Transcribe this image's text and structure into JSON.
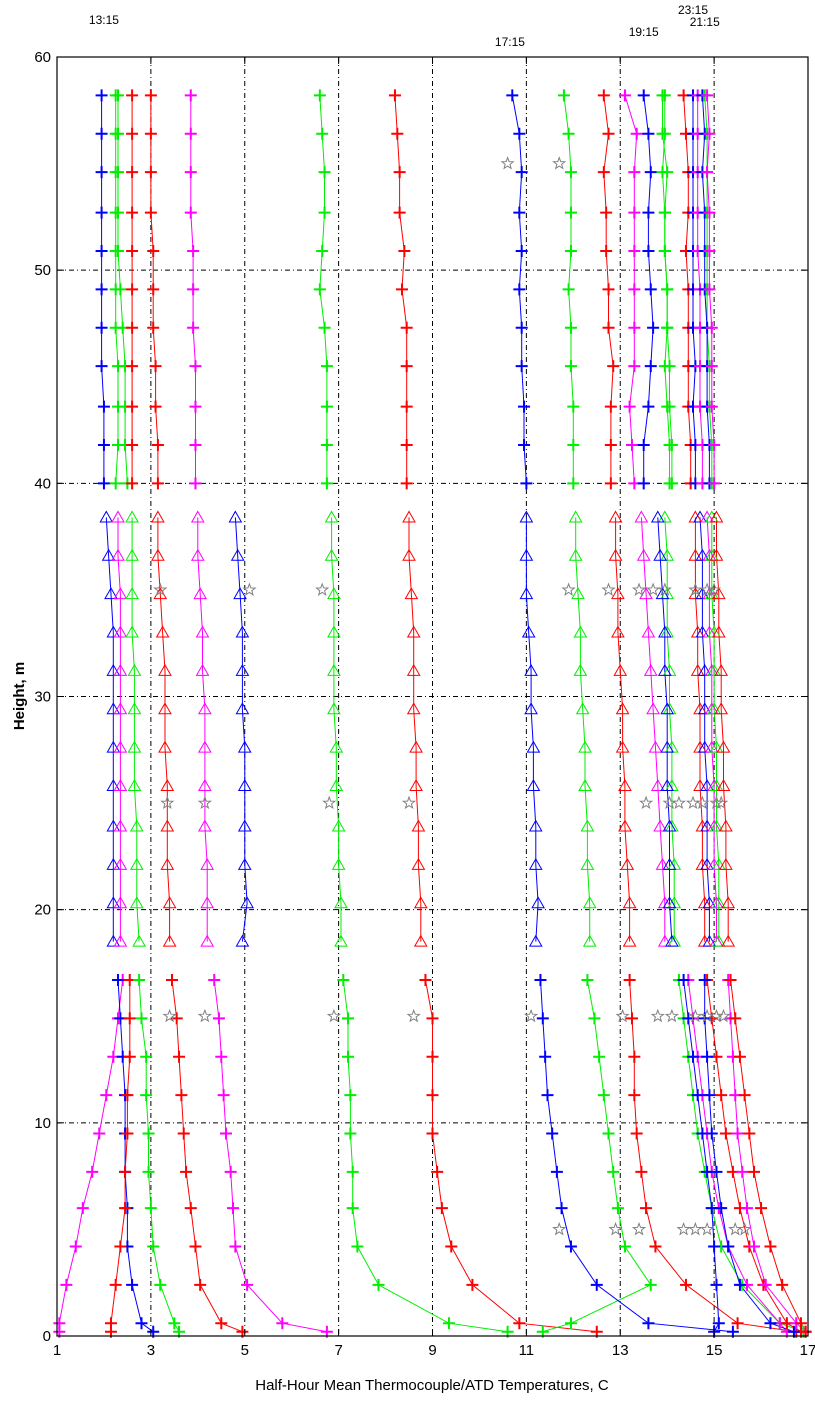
{
  "chart_data": {
    "type": "line",
    "title": "",
    "xlabel": "Half-Hour Mean Thermocouple/ATD Temperatures, C",
    "ylabel": "Height, m",
    "xlim": [
      1,
      17
    ],
    "ylim": [
      0,
      60
    ],
    "x_ticks": [
      1,
      3,
      5,
      7,
      9,
      11,
      13,
      15,
      17
    ],
    "y_ticks": [
      0,
      10,
      20,
      30,
      40,
      50,
      60
    ],
    "x_grid": [
      3,
      5,
      7,
      9,
      11,
      13,
      15
    ],
    "y_grid": [
      10,
      20,
      30,
      40,
      50
    ],
    "grid": true,
    "colors": {
      "blue": "#0000ff",
      "green": "#00ee00",
      "red": "#ff0000",
      "magenta": "#ff00ff",
      "star": "#808080"
    },
    "time_labels": [
      {
        "text": "13:15",
        "x": 2.0
      },
      {
        "text": "17:15",
        "x": 10.65
      },
      {
        "text": "19:15",
        "x": 13.5
      },
      {
        "text": "23:15",
        "x": 14.55
      },
      {
        "text": "21:15",
        "x": 14.8
      }
    ],
    "upper_heights": [
      40,
      41.8,
      43.6,
      45.5,
      47.3,
      49.1,
      50.9,
      52.7,
      54.6,
      56.4,
      58.2
    ],
    "atd_heights": [
      18.5,
      20.3,
      22.1,
      23.9,
      25.8,
      27.6,
      29.4,
      31.2,
      33.0,
      34.8,
      36.6,
      38.4
    ],
    "lower_heights": [
      0.2,
      0.6,
      2.4,
      4.2,
      6.0,
      7.7,
      9.5,
      11.3,
      13.1,
      14.9,
      16.7
    ],
    "upper_series": [
      {
        "color": "blue",
        "values": [
          2.0,
          2.0,
          2.0,
          1.95,
          1.95,
          1.95,
          1.95,
          1.95,
          1.95,
          1.95,
          1.95
        ]
      },
      {
        "color": "green",
        "values": [
          2.5,
          2.45,
          2.45,
          2.45,
          2.4,
          2.35,
          2.3,
          2.3,
          2.3,
          2.3,
          2.3
        ]
      },
      {
        "color": "red",
        "values": [
          2.6,
          2.6,
          2.6,
          2.6,
          2.6,
          2.6,
          2.6,
          2.6,
          2.6,
          2.6,
          2.6
        ]
      },
      {
        "color": "green",
        "values": [
          2.25,
          2.3,
          2.3,
          2.3,
          2.25,
          2.25,
          2.25,
          2.25,
          2.25,
          2.25,
          2.25
        ]
      },
      {
        "color": "red",
        "values": [
          3.15,
          3.15,
          3.1,
          3.1,
          3.05,
          3.05,
          3.05,
          3.0,
          3.0,
          3.0,
          3.0
        ]
      },
      {
        "color": "magenta",
        "values": [
          3.95,
          3.95,
          3.95,
          3.95,
          3.9,
          3.9,
          3.9,
          3.85,
          3.85,
          3.85,
          3.85
        ]
      },
      {
        "color": "green",
        "values": [
          6.75,
          6.75,
          6.75,
          6.75,
          6.7,
          6.6,
          6.65,
          6.7,
          6.7,
          6.65,
          6.6
        ]
      },
      {
        "color": "red",
        "values": [
          8.45,
          8.45,
          8.45,
          8.45,
          8.45,
          8.35,
          8.4,
          8.3,
          8.3,
          8.25,
          8.2
        ]
      },
      {
        "color": "blue",
        "values": [
          11.0,
          10.95,
          10.95,
          10.9,
          10.9,
          10.85,
          10.9,
          10.85,
          10.9,
          10.85,
          10.7
        ]
      },
      {
        "color": "green",
        "values": [
          12.0,
          12.0,
          12.0,
          11.95,
          11.95,
          11.9,
          11.95,
          11.95,
          11.95,
          11.9,
          11.8
        ]
      },
      {
        "color": "red",
        "values": [
          12.8,
          12.8,
          12.8,
          12.85,
          12.75,
          12.75,
          12.7,
          12.7,
          12.65,
          12.75,
          12.65
        ]
      },
      {
        "color": "magenta",
        "values": [
          13.3,
          13.25,
          13.2,
          13.3,
          13.3,
          13.3,
          13.3,
          13.3,
          13.3,
          13.35,
          13.1
        ]
      },
      {
        "color": "blue",
        "values": [
          13.5,
          13.5,
          13.6,
          13.65,
          13.7,
          13.65,
          13.6,
          13.6,
          13.65,
          13.6,
          13.5
        ]
      },
      {
        "color": "green",
        "values": [
          14.05,
          14.05,
          14.0,
          13.95,
          14.0,
          14.0,
          13.95,
          13.95,
          13.9,
          13.95,
          13.95
        ]
      },
      {
        "color": "green",
        "values": [
          14.1,
          14.1,
          14.05,
          14.05,
          14.0,
          14.0,
          13.95,
          13.95,
          14.0,
          13.9,
          13.9
        ]
      },
      {
        "color": "red",
        "values": [
          14.5,
          14.5,
          14.45,
          14.45,
          14.45,
          14.45,
          14.4,
          14.45,
          14.45,
          14.4,
          14.35
        ]
      },
      {
        "color": "blue",
        "values": [
          14.6,
          14.6,
          14.55,
          14.6,
          14.55,
          14.55,
          14.55,
          14.55,
          14.55,
          14.55,
          14.55
        ]
      },
      {
        "color": "magenta",
        "values": [
          14.75,
          14.75,
          14.7,
          14.7,
          14.7,
          14.7,
          14.65,
          14.65,
          14.65,
          14.65,
          14.65
        ]
      },
      {
        "color": "green",
        "values": [
          14.95,
          14.95,
          14.9,
          14.9,
          14.85,
          14.85,
          14.85,
          14.85,
          14.85,
          14.85,
          14.8
        ]
      },
      {
        "color": "blue",
        "values": [
          14.9,
          14.9,
          14.85,
          14.85,
          14.85,
          14.8,
          14.8,
          14.8,
          14.75,
          14.8,
          14.75
        ]
      },
      {
        "color": "magenta",
        "values": [
          15.0,
          15.0,
          14.95,
          14.95,
          14.95,
          14.9,
          14.9,
          14.9,
          14.85,
          14.9,
          14.85
        ]
      }
    ],
    "atd_series": [
      {
        "color": "blue",
        "values": [
          2.2,
          2.2,
          2.2,
          2.2,
          2.2,
          2.2,
          2.2,
          2.2,
          2.2,
          2.15,
          2.1,
          2.05
        ]
      },
      {
        "color": "magenta",
        "values": [
          2.35,
          2.35,
          2.35,
          2.35,
          2.35,
          2.35,
          2.35,
          2.35,
          2.35,
          2.35,
          2.3,
          2.3
        ]
      },
      {
        "color": "green",
        "values": [
          2.75,
          2.7,
          2.7,
          2.7,
          2.65,
          2.65,
          2.65,
          2.65,
          2.6,
          2.6,
          2.6,
          2.6
        ]
      },
      {
        "color": "red",
        "values": [
          3.4,
          3.4,
          3.35,
          3.35,
          3.35,
          3.3,
          3.3,
          3.3,
          3.25,
          3.2,
          3.15,
          3.15
        ]
      },
      {
        "color": "magenta",
        "values": [
          4.2,
          4.2,
          4.2,
          4.15,
          4.15,
          4.15,
          4.15,
          4.1,
          4.1,
          4.05,
          4.0,
          4.0
        ]
      },
      {
        "color": "blue",
        "values": [
          4.95,
          5.05,
          5.0,
          5.0,
          5.0,
          5.0,
          4.95,
          4.95,
          4.95,
          4.9,
          4.85,
          4.8
        ]
      },
      {
        "color": "green",
        "values": [
          7.05,
          7.05,
          7.0,
          7.0,
          6.95,
          6.95,
          6.9,
          6.9,
          6.9,
          6.9,
          6.85,
          6.85
        ]
      },
      {
        "color": "red",
        "values": [
          8.75,
          8.75,
          8.7,
          8.7,
          8.65,
          8.65,
          8.6,
          8.6,
          8.6,
          8.55,
          8.5,
          8.5
        ]
      },
      {
        "color": "blue",
        "values": [
          11.2,
          11.25,
          11.2,
          11.2,
          11.15,
          11.15,
          11.1,
          11.1,
          11.05,
          11.0,
          11.0,
          11.0
        ]
      },
      {
        "color": "green",
        "values": [
          12.35,
          12.35,
          12.3,
          12.3,
          12.25,
          12.25,
          12.2,
          12.15,
          12.15,
          12.1,
          12.05,
          12.05
        ]
      },
      {
        "color": "red",
        "values": [
          13.2,
          13.2,
          13.15,
          13.1,
          13.1,
          13.05,
          13.05,
          13.0,
          12.95,
          12.95,
          12.9,
          12.9
        ]
      },
      {
        "color": "magenta",
        "values": [
          13.95,
          13.95,
          13.9,
          13.85,
          13.8,
          13.75,
          13.7,
          13.65,
          13.6,
          13.55,
          13.5,
          13.45
        ]
      },
      {
        "color": "green",
        "values": [
          14.15,
          14.15,
          14.15,
          14.1,
          14.1,
          14.1,
          14.05,
          14.05,
          14.0,
          14.0,
          14.0,
          13.95
        ]
      },
      {
        "color": "blue",
        "values": [
          14.1,
          14.05,
          14.05,
          14.05,
          14.0,
          14.0,
          14.0,
          13.95,
          13.95,
          13.9,
          13.85,
          13.8
        ]
      },
      {
        "color": "red",
        "values": [
          14.8,
          14.8,
          14.75,
          14.75,
          14.7,
          14.7,
          14.7,
          14.65,
          14.65,
          14.6,
          14.6,
          14.6
        ]
      },
      {
        "color": "blue",
        "values": [
          14.9,
          14.9,
          14.85,
          14.85,
          14.85,
          14.8,
          14.8,
          14.8,
          14.75,
          14.75,
          14.75,
          14.7
        ]
      },
      {
        "color": "magenta",
        "values": [
          15.05,
          15.05,
          15.0,
          15.0,
          15.0,
          14.95,
          14.95,
          14.95,
          14.9,
          14.9,
          14.9,
          14.85
        ]
      },
      {
        "color": "green",
        "values": [
          15.1,
          15.1,
          15.1,
          15.05,
          15.05,
          15.05,
          15.0,
          15.0,
          15.0,
          14.95,
          14.95,
          14.95
        ]
      },
      {
        "color": "red",
        "values": [
          15.3,
          15.3,
          15.25,
          15.25,
          15.2,
          15.2,
          15.15,
          15.15,
          15.1,
          15.1,
          15.05,
          15.05
        ]
      }
    ],
    "lower_series": [
      {
        "color": "magenta",
        "values": [
          1.05,
          1.05,
          1.2,
          1.4,
          1.55,
          1.75,
          1.9,
          2.05,
          2.2,
          2.3,
          2.4
        ]
      },
      {
        "color": "blue",
        "values": [
          3.05,
          2.8,
          2.6,
          2.5,
          2.5,
          2.45,
          2.45,
          2.45,
          2.4,
          2.35,
          2.3
        ]
      },
      {
        "color": "red",
        "values": [
          2.15,
          2.15,
          2.25,
          2.35,
          2.45,
          2.45,
          2.5,
          2.5,
          2.55,
          2.55,
          2.55
        ]
      },
      {
        "color": "green",
        "values": [
          3.6,
          3.5,
          3.2,
          3.05,
          3.0,
          2.95,
          2.95,
          2.9,
          2.9,
          2.8,
          2.75
        ]
      },
      {
        "color": "red",
        "values": [
          4.95,
          4.5,
          4.05,
          3.95,
          3.85,
          3.75,
          3.7,
          3.65,
          3.6,
          3.55,
          3.45
        ]
      },
      {
        "color": "magenta",
        "values": [
          6.75,
          5.8,
          5.05,
          4.8,
          4.75,
          4.7,
          4.6,
          4.55,
          4.5,
          4.45,
          4.35
        ]
      },
      {
        "color": "green",
        "values": [
          10.6,
          9.35,
          7.85,
          7.4,
          7.3,
          7.3,
          7.25,
          7.25,
          7.2,
          7.2,
          7.1
        ]
      },
      {
        "color": "red",
        "values": [
          12.5,
          10.85,
          9.85,
          9.4,
          9.2,
          9.1,
          9.0,
          9.0,
          9.0,
          9.0,
          8.85
        ]
      },
      {
        "color": "green",
        "values": [
          11.35,
          11.95,
          13.65,
          13.1,
          12.95,
          12.85,
          12.75,
          12.65,
          12.55,
          12.45,
          12.3
        ]
      },
      {
        "color": "blue",
        "values": [
          15.4,
          13.6,
          12.5,
          11.95,
          11.75,
          11.65,
          11.55,
          11.45,
          11.4,
          11.35,
          11.3
        ]
      },
      {
        "color": "red",
        "values": [
          16.75,
          15.5,
          14.4,
          13.75,
          13.55,
          13.45,
          13.35,
          13.3,
          13.3,
          13.25,
          13.2
        ]
      },
      {
        "color": "green",
        "values": [
          16.9,
          16.4,
          15.6,
          15.15,
          14.95,
          14.8,
          14.65,
          14.55,
          14.45,
          14.35,
          14.25
        ]
      },
      {
        "color": "magenta",
        "values": [
          16.55,
          16.4,
          15.7,
          15.3,
          15.1,
          14.95,
          14.85,
          14.75,
          14.65,
          14.55,
          14.45
        ]
      },
      {
        "color": "blue",
        "values": [
          15.0,
          15.1,
          15.05,
          15.0,
          14.95,
          14.85,
          14.75,
          14.65,
          14.55,
          14.45,
          14.35
        ]
      },
      {
        "color": "red",
        "values": [
          16.85,
          16.55,
          16.05,
          15.75,
          15.55,
          15.4,
          15.25,
          15.15,
          15.05,
          14.95,
          14.85
        ]
      },
      {
        "color": "blue",
        "values": [
          16.7,
          16.2,
          15.55,
          15.3,
          15.15,
          15.05,
          14.95,
          14.9,
          14.85,
          14.8,
          14.8
        ]
      },
      {
        "color": "magenta",
        "values": [
          16.95,
          16.75,
          16.1,
          15.85,
          15.7,
          15.6,
          15.5,
          15.45,
          15.4,
          15.35,
          15.3
        ]
      },
      {
        "color": "red",
        "values": [
          16.95,
          16.85,
          16.45,
          16.2,
          16.0,
          15.85,
          15.75,
          15.65,
          15.55,
          15.45,
          15.35
        ]
      }
    ],
    "sonic_points": [
      {
        "x": 10.6,
        "y": 55.0
      },
      {
        "x": 11.7,
        "y": 55.0
      },
      {
        "x": 3.2,
        "y": 35.0
      },
      {
        "x": 5.1,
        "y": 35.0
      },
      {
        "x": 6.65,
        "y": 35.0
      },
      {
        "x": 11.9,
        "y": 35.0
      },
      {
        "x": 12.75,
        "y": 35.0
      },
      {
        "x": 13.4,
        "y": 35.0
      },
      {
        "x": 13.7,
        "y": 35.0
      },
      {
        "x": 13.95,
        "y": 35.0
      },
      {
        "x": 14.6,
        "y": 35.0
      },
      {
        "x": 14.85,
        "y": 35.0
      },
      {
        "x": 15.0,
        "y": 35.0
      },
      {
        "x": 3.35,
        "y": 25.0
      },
      {
        "x": 4.15,
        "y": 25.0
      },
      {
        "x": 6.8,
        "y": 25.0
      },
      {
        "x": 8.5,
        "y": 25.0
      },
      {
        "x": 13.55,
        "y": 25.0
      },
      {
        "x": 14.05,
        "y": 25.0
      },
      {
        "x": 14.25,
        "y": 25.0
      },
      {
        "x": 14.55,
        "y": 25.0
      },
      {
        "x": 14.75,
        "y": 25.0
      },
      {
        "x": 15.05,
        "y": 25.0
      },
      {
        "x": 15.15,
        "y": 25.0
      },
      {
        "x": 3.4,
        "y": 15.0
      },
      {
        "x": 4.15,
        "y": 15.0
      },
      {
        "x": 6.9,
        "y": 15.0
      },
      {
        "x": 8.6,
        "y": 15.0
      },
      {
        "x": 11.1,
        "y": 15.0
      },
      {
        "x": 13.05,
        "y": 15.0
      },
      {
        "x": 13.8,
        "y": 15.0
      },
      {
        "x": 14.1,
        "y": 15.0
      },
      {
        "x": 14.6,
        "y": 15.0
      },
      {
        "x": 14.85,
        "y": 15.0
      },
      {
        "x": 15.05,
        "y": 15.0
      },
      {
        "x": 15.2,
        "y": 15.0
      },
      {
        "x": 11.7,
        "y": 5.0
      },
      {
        "x": 12.9,
        "y": 5.0
      },
      {
        "x": 13.4,
        "y": 5.0
      },
      {
        "x": 14.35,
        "y": 5.0
      },
      {
        "x": 14.6,
        "y": 5.0
      },
      {
        "x": 14.85,
        "y": 5.0
      },
      {
        "x": 15.45,
        "y": 5.0
      },
      {
        "x": 15.65,
        "y": 5.0
      }
    ]
  }
}
